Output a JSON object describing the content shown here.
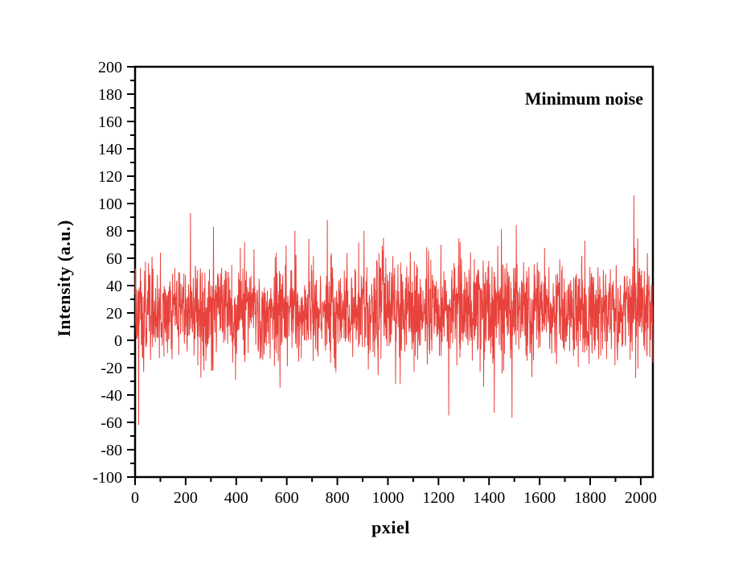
{
  "figure": {
    "background_color": "#ffffff",
    "kind": "scientific-noise-plot"
  },
  "chart_data": {
    "type": "line",
    "title": "",
    "annotation": "Minimum noise",
    "xlabel": "pxiel",
    "ylabel": "Intensity (a.u.)",
    "xlim": [
      0,
      2048
    ],
    "ylim": [
      -100,
      200
    ],
    "x_ticks": [
      0,
      200,
      400,
      600,
      800,
      1000,
      1200,
      1400,
      1600,
      1800,
      2000
    ],
    "y_ticks": [
      -100,
      -80,
      -60,
      -40,
      -20,
      0,
      20,
      40,
      60,
      80,
      100,
      120,
      140,
      160,
      180,
      200
    ],
    "x_minor_step": 100,
    "y_minor_step": 10,
    "grid": false,
    "legend": "none",
    "line_color": "#e8423c",
    "axis_color": "#000000",
    "tick_label_color": "#000000",
    "series": [
      {
        "name": "minimum-noise-trace",
        "points": "synthetic-white-noise",
        "n_points": 2048,
        "mean": 21,
        "std": 18.5,
        "seed": 1337,
        "observed_min": -62,
        "observed_max": 106,
        "spikes": [
          {
            "x": 14,
            "value": -62
          },
          {
            "x": 219,
            "value": 93
          },
          {
            "x": 310,
            "value": 83
          },
          {
            "x": 760,
            "value": 88
          },
          {
            "x": 905,
            "value": 80
          },
          {
            "x": 1240,
            "value": -55
          },
          {
            "x": 1420,
            "value": -53
          },
          {
            "x": 1972,
            "value": 106
          }
        ]
      }
    ]
  }
}
